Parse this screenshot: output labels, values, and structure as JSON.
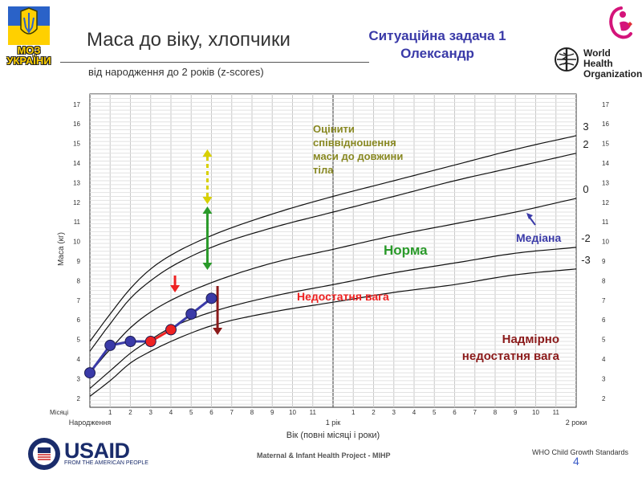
{
  "header": {
    "title": "Маса до віку, хлопчики",
    "subtitle": "від народження до 2 років (z-scores)",
    "task_line1": "Ситуаційна задача 1",
    "task_line2": "Олександр",
    "moz_line1": "МОЗ",
    "moz_line2": "УКРАЇНИ",
    "who_line1": "World Health",
    "who_line2": "Organization"
  },
  "colors": {
    "patient_blue": "#3a3aa8",
    "patient_red": "#ee2222",
    "norma_green": "#2a9a2a",
    "olive": "#888822",
    "dark_red": "#8b1a1a"
  },
  "chart_data": {
    "type": "line",
    "title": "Маса до віку, хлопчики",
    "subtitle": "від народження до 2 років (z-scores)",
    "xlabel": "Вік (повні місяці і роки)",
    "ylabel": "Маса (кг)",
    "xlim": [
      0,
      24
    ],
    "ylim": [
      1.5,
      17.5
    ],
    "x_tick_prefix": "Місяці",
    "x_ticks_month": [
      "1",
      "2",
      "3",
      "4",
      "5",
      "6",
      "7",
      "8",
      "9",
      "10",
      "11",
      "",
      "1",
      "2",
      "3",
      "4",
      "5",
      "6",
      "7",
      "8",
      "9",
      "10",
      "11"
    ],
    "x_major_labels": [
      "Народження",
      "1 рік",
      "2 роки"
    ],
    "y_ticks": [
      2,
      3,
      4,
      5,
      6,
      7,
      8,
      9,
      10,
      11,
      12,
      13,
      14,
      15,
      16,
      17
    ],
    "grid": true,
    "series": [
      {
        "name": "3",
        "x": [
          0,
          1,
          2,
          3,
          4,
          6,
          9,
          12,
          15,
          18,
          21,
          24
        ],
        "values": [
          4.9,
          6.3,
          7.6,
          8.6,
          9.3,
          10.3,
          11.4,
          12.3,
          13.1,
          13.9,
          14.7,
          15.4
        ]
      },
      {
        "name": "2",
        "x": [
          0,
          1,
          2,
          3,
          4,
          6,
          9,
          12,
          15,
          18,
          21,
          24
        ],
        "values": [
          4.4,
          5.8,
          7.1,
          8.0,
          8.7,
          9.7,
          10.7,
          11.5,
          12.3,
          13.1,
          13.8,
          14.5
        ]
      },
      {
        "name": "0",
        "x": [
          0,
          1,
          2,
          3,
          4,
          6,
          9,
          12,
          15,
          18,
          21,
          24
        ],
        "values": [
          3.3,
          4.5,
          5.6,
          6.4,
          7.0,
          7.9,
          8.9,
          9.6,
          10.3,
          10.9,
          11.5,
          12.2
        ]
      },
      {
        "name": "-2",
        "x": [
          0,
          1,
          2,
          3,
          4,
          6,
          9,
          12,
          15,
          18,
          21,
          24
        ],
        "values": [
          2.5,
          3.4,
          4.3,
          5.0,
          5.6,
          6.4,
          7.2,
          7.8,
          8.4,
          8.9,
          9.4,
          9.7
        ]
      },
      {
        "name": "-3",
        "x": [
          0,
          1,
          2,
          3,
          4,
          6,
          9,
          12,
          15,
          18,
          21,
          24
        ],
        "values": [
          2.1,
          2.9,
          3.8,
          4.4,
          4.9,
          5.7,
          6.4,
          6.9,
          7.4,
          7.8,
          8.3,
          8.6
        ]
      }
    ],
    "patient": {
      "x": [
        0,
        1,
        2,
        3,
        4,
        5,
        6
      ],
      "values": [
        3.3,
        4.7,
        4.9,
        4.9,
        5.5,
        6.3,
        7.1
      ],
      "color_flags": [
        "blue",
        "blue",
        "blue",
        "red",
        "red",
        "blue",
        "blue"
      ]
    },
    "annotations": {
      "assess": "Оцінити співвідношення маси до довжини тіла",
      "norma": "Норма",
      "mediana": "Медіана",
      "underweight": "Недостатня вага",
      "severe_line1": "Надмірно",
      "severe_line2": "недостатня вага"
    }
  },
  "footer": {
    "usaid": "USAID",
    "usaid_sub": "FROM THE AMERICAN PEOPLE",
    "project": "Maternal & Infant Health Project - MIHP",
    "standards": "WHO Child Growth Standards",
    "page_number": "4"
  }
}
